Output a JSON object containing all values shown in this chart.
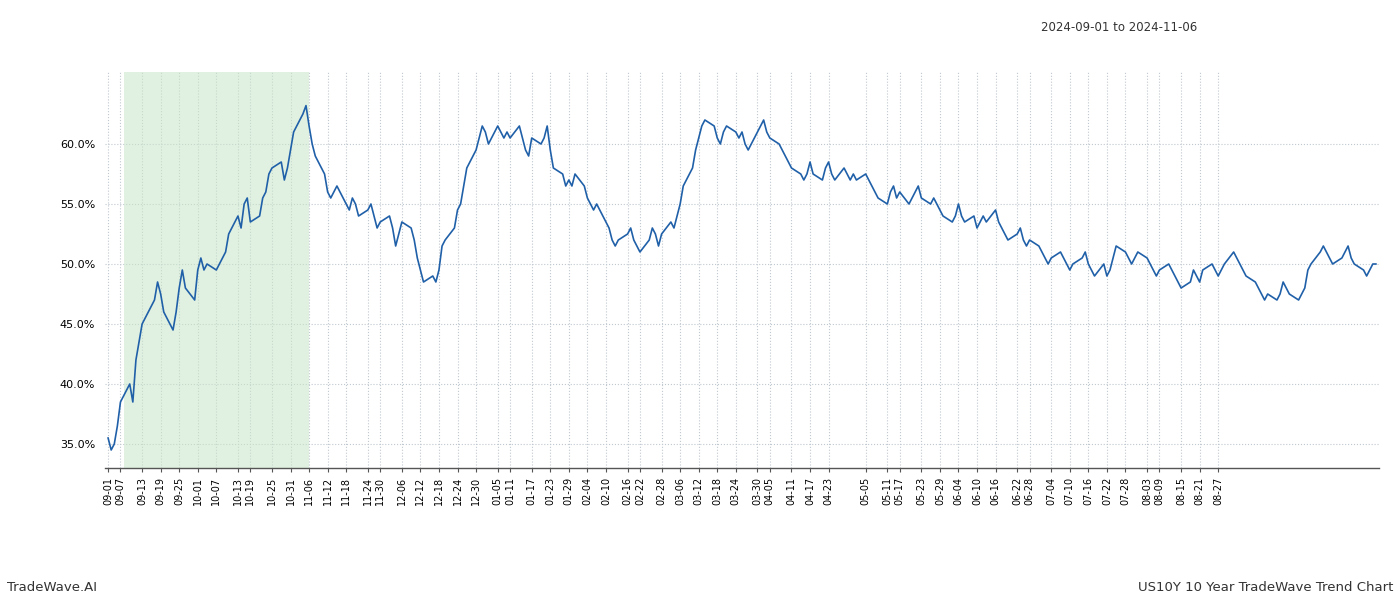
{
  "title_date_range": "2024-09-01 to 2024-11-06",
  "footer_left": "TradeWave.AI",
  "footer_right": "US10Y 10 Year TradeWave Trend Chart",
  "line_color": "#2060a8",
  "line_width": 1.2,
  "shaded_region_color": "#c8e6c9",
  "shaded_region_alpha": 0.55,
  "shaded_start": "2024-09-07",
  "shaded_end": "2024-11-06",
  "ylim": [
    33.0,
    66.0
  ],
  "yticks": [
    35.0,
    40.0,
    45.0,
    50.0,
    55.0,
    60.0
  ],
  "background_color": "#ffffff",
  "grid_color": "#c0c8d0",
  "grid_style": ":",
  "x_tick_labels": [
    "09-01",
    "09-07",
    "09-13",
    "09-19",
    "09-25",
    "10-01",
    "10-07",
    "10-13",
    "10-19",
    "10-25",
    "10-31",
    "11-06",
    "11-12",
    "11-18",
    "11-24",
    "11-30",
    "12-06",
    "12-12",
    "12-18",
    "12-24",
    "12-30",
    "01-05",
    "01-11",
    "01-17",
    "01-23",
    "01-29",
    "02-04",
    "02-10",
    "02-16",
    "02-22",
    "02-28",
    "03-06",
    "03-12",
    "03-18",
    "03-24",
    "03-30",
    "04-05",
    "04-11",
    "04-17",
    "04-23",
    "05-05",
    "05-11",
    "05-17",
    "05-23",
    "05-29",
    "06-04",
    "06-10",
    "06-16",
    "06-22",
    "06-28",
    "07-04",
    "07-10",
    "07-16",
    "07-22",
    "07-28",
    "08-03",
    "08-09",
    "08-15",
    "08-21",
    "08-27"
  ],
  "y_values": [
    35.5,
    34.5,
    35.0,
    36.5,
    38.5,
    40.0,
    38.5,
    42.0,
    43.5,
    45.0,
    46.5,
    47.0,
    48.5,
    47.5,
    46.0,
    44.5,
    46.0,
    48.0,
    49.5,
    48.0,
    47.0,
    49.5,
    50.5,
    49.5,
    50.0,
    49.5,
    50.0,
    50.5,
    51.0,
    52.5,
    54.0,
    53.0,
    55.0,
    55.5,
    53.5,
    54.0,
    55.5,
    56.0,
    57.5,
    58.0,
    58.5,
    57.0,
    58.0,
    59.5,
    61.0,
    62.5,
    63.2,
    61.5,
    60.0,
    59.0,
    57.5,
    56.0,
    55.5,
    56.0,
    56.5,
    55.0,
    54.5,
    55.5,
    55.0,
    54.0,
    54.5,
    55.0,
    54.0,
    53.0,
    53.5,
    54.0,
    53.0,
    51.5,
    52.5,
    53.5,
    53.0,
    52.0,
    50.5,
    49.5,
    48.5,
    49.0,
    48.5,
    49.5,
    51.5,
    52.0,
    53.0,
    54.5,
    55.0,
    56.5,
    58.0,
    59.5,
    60.5,
    61.5,
    61.0,
    60.0,
    61.5,
    61.0,
    60.5,
    61.0,
    60.5,
    61.5,
    60.5,
    59.5,
    59.0,
    60.5,
    60.0,
    60.5,
    61.5,
    59.5,
    58.0,
    57.5,
    56.5,
    57.0,
    56.5,
    57.5,
    56.5,
    55.5,
    55.0,
    54.5,
    55.0,
    53.5,
    53.0,
    52.0,
    51.5,
    52.0,
    52.5,
    53.0,
    52.0,
    51.5,
    51.0,
    52.0,
    53.0,
    52.5,
    51.5,
    52.5,
    53.5,
    53.0,
    54.0,
    55.0,
    56.5,
    58.0,
    59.5,
    60.5,
    61.5,
    62.0,
    61.5,
    60.5,
    60.0,
    61.0,
    61.5,
    61.0,
    60.5,
    61.0,
    60.0,
    59.5,
    61.0,
    61.5,
    62.0,
    61.0,
    60.5,
    60.0,
    59.5,
    59.0,
    58.5,
    58.0,
    57.5,
    57.0,
    57.5,
    58.5,
    57.5,
    57.0,
    58.0,
    58.5,
    57.5,
    57.0,
    58.0,
    57.5,
    57.0,
    57.5,
    57.0,
    57.5,
    57.0,
    56.5,
    56.0,
    55.5,
    55.0,
    56.0,
    56.5,
    55.5,
    56.0,
    55.0,
    55.5,
    56.0,
    56.5,
    55.5,
    55.0,
    55.5,
    55.0,
    54.5,
    54.0,
    53.5,
    54.0,
    55.0,
    54.0,
    53.5,
    54.0,
    53.0,
    53.5,
    54.0,
    53.5,
    54.5,
    53.5,
    53.0,
    52.5,
    52.0,
    52.5,
    53.0,
    52.0,
    51.5,
    52.0,
    51.5,
    51.0,
    50.5,
    50.0,
    50.5,
    51.0,
    50.5,
    50.0,
    49.5,
    50.0,
    50.5,
    51.0,
    50.0,
    49.5,
    49.0,
    50.0,
    49.0,
    49.5,
    50.5,
    51.5,
    51.0,
    50.5,
    50.0,
    50.5,
    51.0,
    50.5,
    50.0,
    49.5,
    49.0,
    49.5,
    50.0,
    49.5,
    49.0,
    48.5,
    48.0,
    48.5,
    49.5,
    49.0,
    48.5,
    49.5,
    50.0,
    49.5,
    49.0,
    49.5,
    50.0,
    51.0,
    50.5,
    50.0,
    49.5,
    49.0,
    48.5,
    48.0,
    47.5,
    47.0,
    47.5,
    47.0,
    47.5,
    48.5,
    48.0,
    47.5,
    47.0,
    47.5,
    48.0,
    49.5,
    50.0,
    51.0,
    51.5,
    51.0,
    50.5,
    50.0,
    50.5,
    51.0,
    51.5,
    50.5,
    50.0,
    49.5,
    49.0,
    49.5,
    50.0,
    50.0
  ]
}
